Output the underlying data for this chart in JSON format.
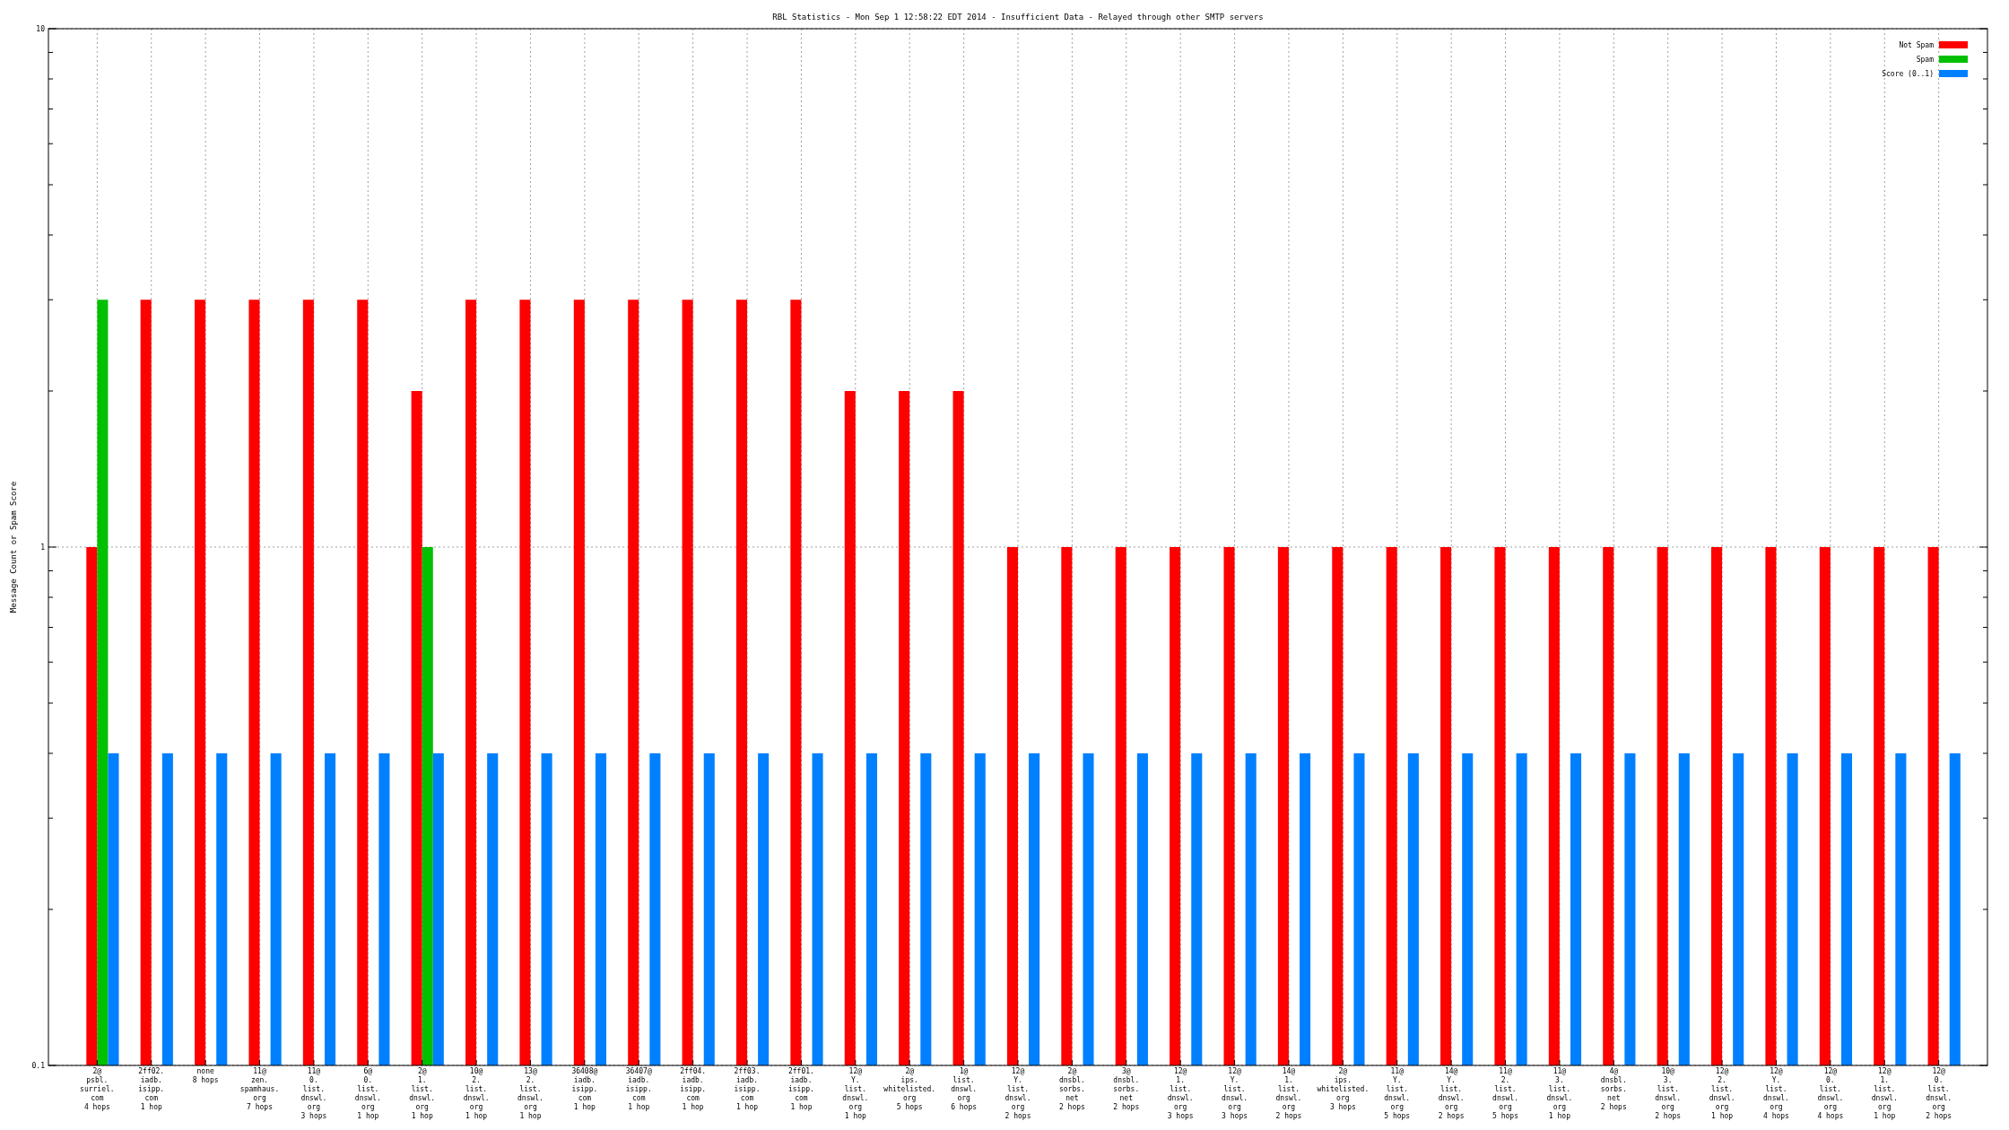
{
  "chart_data": {
    "type": "bar",
    "title": "RBL Statistics - Mon Sep  1 12:58:22 EDT 2014 - Insufficient Data - Relayed through other SMTP servers",
    "ylabel": "Message Count or Spam Score",
    "log": true,
    "grid": true,
    "legend": "top right",
    "ylim": [
      0.1,
      10
    ],
    "yticks": [
      0.1,
      {
        "value": 0.2,
        "label": null
      },
      {
        "value": 0.3,
        "label": null
      },
      {
        "value": 0.4,
        "label": null
      },
      {
        "value": 0.5,
        "label": null
      },
      {
        "value": 0.6,
        "label": null
      },
      {
        "value": 0.7,
        "label": null
      },
      {
        "value": 0.8,
        "label": null
      },
      {
        "value": 0.9,
        "label": null
      },
      1,
      {
        "value": 2,
        "label": null
      },
      {
        "value": 3,
        "label": null
      },
      {
        "value": 4,
        "label": null
      },
      {
        "value": 5,
        "label": null
      },
      {
        "value": 6,
        "label": null
      },
      {
        "value": 7,
        "label": null
      },
      {
        "value": 8,
        "label": null
      },
      {
        "value": 9,
        "label": null
      },
      10
    ],
    "categories": [
      "2@\npsbl.\nsurriel.\ncom\n4 hops",
      "2ff02.\niadb.\nisipp.\ncom\n1 hop",
      "none\n8 hops",
      "11@\nzen.\nspamhaus.\norg\n7 hops",
      "11@\n0.\nlist.\ndnswl.\norg\n3 hops",
      "6@\n0.\nlist.\ndnswl.\norg\n1 hop",
      "2@\n1.\nlist.\ndnswl.\norg\n1 hop",
      "10@\n2.\nlist.\ndnswl.\norg\n1 hop",
      "13@\n2.\nlist.\ndnswl.\norg\n1 hop",
      "36408@\niadb.\nisipp.\ncom\n1 hop",
      "36407@\niadb.\nisipp.\ncom\n1 hop",
      "2ff04.\niadb.\nisipp.\ncom\n1 hop",
      "2ff03.\niadb.\nisipp.\ncom\n1 hop",
      "2ff01.\niadb.\nisipp.\ncom\n1 hop",
      "12@\nY.\nlist.\ndnswl.\norg\n1 hop",
      "2@\nips.\nwhitelisted.\norg\n5 hops",
      "1@\nlist.\ndnswl.\norg\n6 hops",
      "12@\nY.\nlist.\ndnswl.\norg\n2 hops",
      "2@\ndnsbl.\nsorbs.\nnet\n2 hops",
      "3@\ndnsbl.\nsorbs.\nnet\n2 hops",
      "12@\n1.\nlist.\ndnswl.\norg\n3 hops",
      "12@\nY.\nlist.\ndnswl.\norg\n3 hops",
      "14@\n1.\nlist.\ndnswl.\norg\n2 hops",
      "2@\nips.\nwhitelisted.\norg\n3 hops",
      "11@\nY.\nlist.\ndnswl.\norg\n5 hops",
      "14@\nY.\nlist.\ndnswl.\norg\n2 hops",
      "11@\n2.\nlist.\ndnswl.\norg\n5 hops",
      "11@\n3.\nlist.\ndnswl.\norg\n1 hop",
      "4@\ndnsbl.\nsorbs.\nnet\n2 hops",
      "10@\n3.\nlist.\ndnswl.\norg\n2 hops",
      "12@\n2.\nlist.\ndnswl.\norg\n1 hop",
      "12@\nY.\nlist.\ndnswl.\norg\n4 hops",
      "12@\n0.\nlist.\ndnswl.\norg\n4 hops",
      "12@\n1.\nlist.\ndnswl.\norg\n1 hop",
      "12@\n0.\nlist.\ndnswl.\norg\n2 hops"
    ],
    "series": [
      {
        "name": "Not Spam",
        "color": "#ff0000",
        "values": [
          1,
          3,
          3,
          3,
          3,
          3,
          2,
          3,
          3,
          3,
          3,
          3,
          3,
          3,
          2,
          2,
          2,
          1,
          1,
          1,
          1,
          1,
          1,
          1,
          1,
          1,
          1,
          1,
          1,
          1,
          1,
          1,
          1,
          1,
          1
        ]
      },
      {
        "name": "Spam",
        "color": "#00c000",
        "values": [
          3,
          null,
          null,
          null,
          null,
          null,
          1,
          null,
          null,
          null,
          null,
          null,
          null,
          null,
          null,
          null,
          null,
          null,
          null,
          null,
          null,
          null,
          null,
          null,
          null,
          null,
          null,
          null,
          null,
          null,
          null,
          null,
          null,
          null,
          null
        ]
      },
      {
        "name": "Score (0..1)",
        "color": "#0080ff",
        "values": [
          0.4,
          0.4,
          0.4,
          0.4,
          0.4,
          0.4,
          0.4,
          0.4,
          0.4,
          0.4,
          0.4,
          0.4,
          0.4,
          0.4,
          0.4,
          0.4,
          0.4,
          0.4,
          0.4,
          0.4,
          0.4,
          0.4,
          0.4,
          0.4,
          0.4,
          0.4,
          0.4,
          0.4,
          0.4,
          0.4,
          0.4,
          0.4,
          0.4,
          0.4,
          0.4
        ]
      }
    ]
  }
}
